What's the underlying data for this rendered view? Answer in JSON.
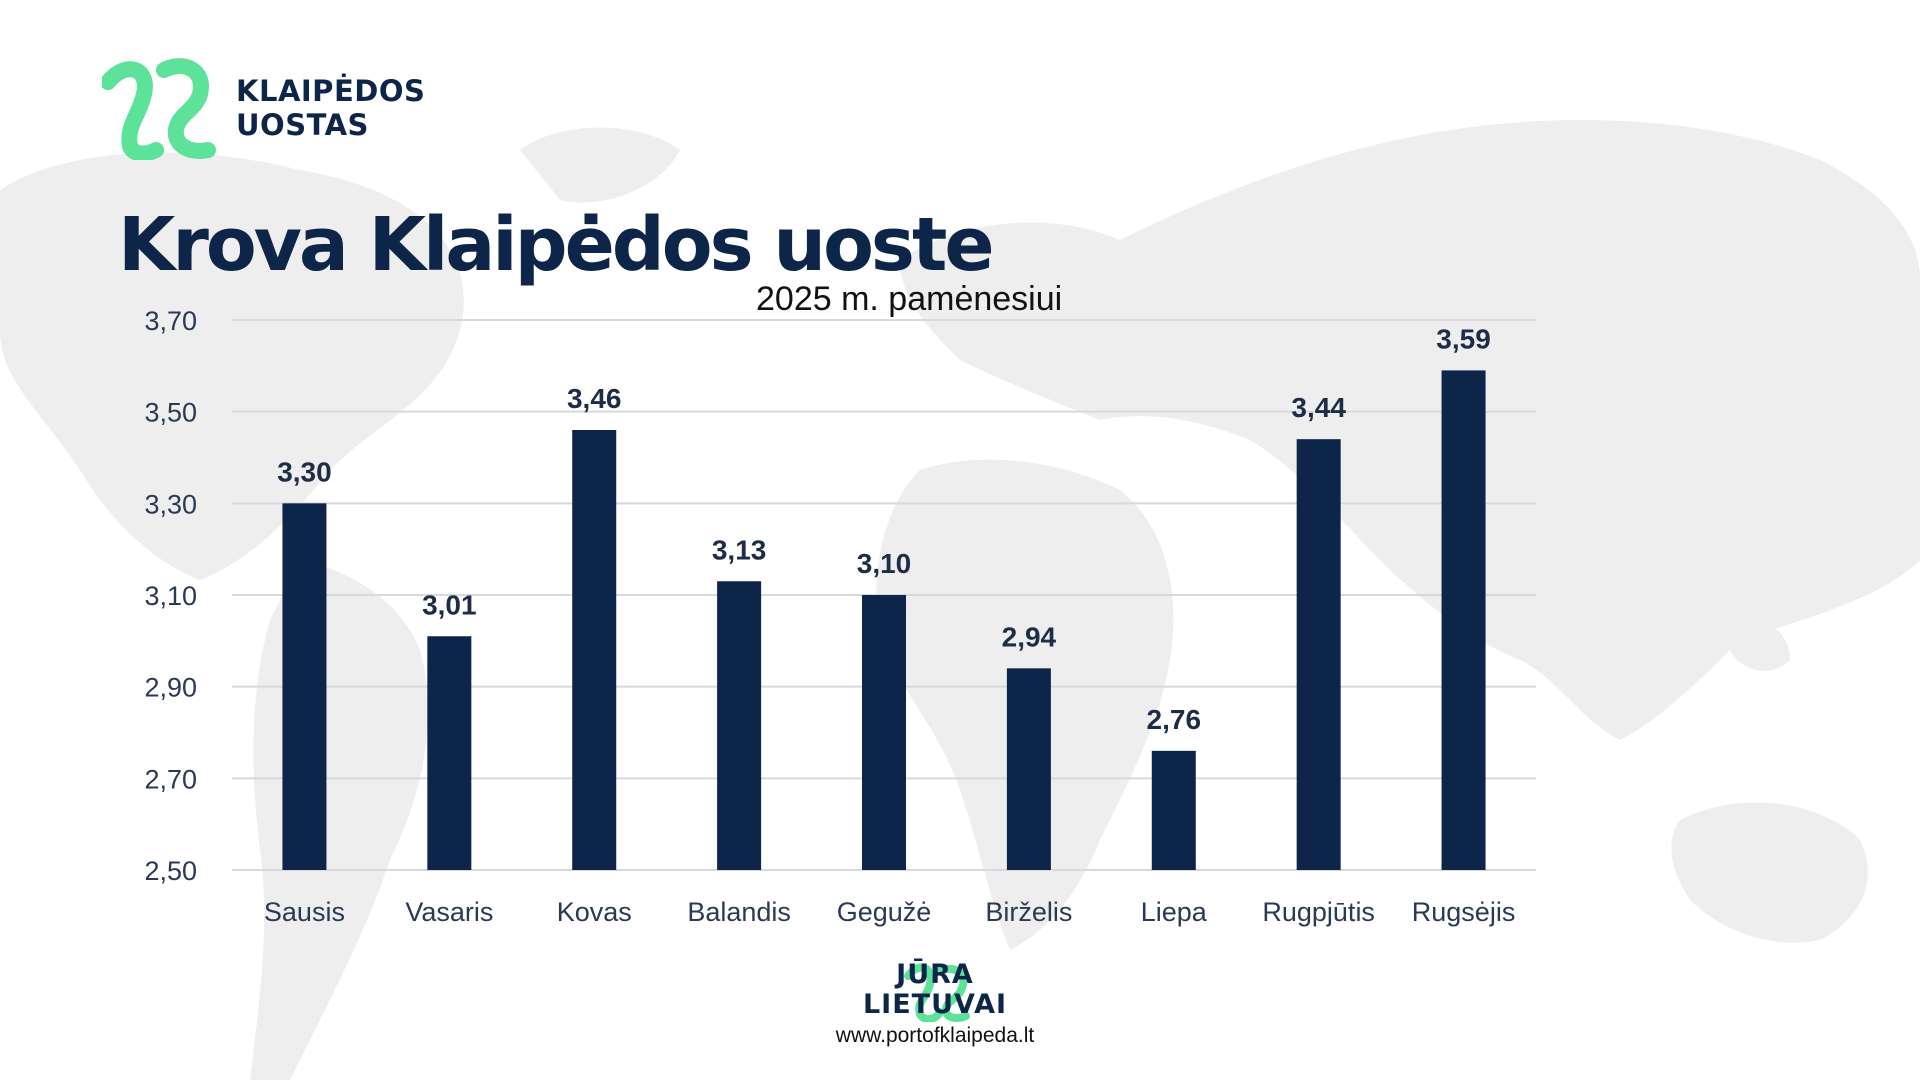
{
  "brand": {
    "line1": "KLAIPĖDOS",
    "line2": "UOSTAS",
    "logo_color": "#5de29a",
    "text_color": "#0d2548"
  },
  "footer": {
    "logo_line1": "JŪRA",
    "logo_line2": "LIETUVAI",
    "url": "www.portofklaipeda.lt"
  },
  "chart_data": {
    "type": "bar",
    "title": "Krova Klaipėdos uoste",
    "subtitle": "2025 m. pamėnesiui",
    "categories": [
      "Sausis",
      "Vasaris",
      "Kovas",
      "Balandis",
      "Gegužė",
      "Birželis",
      "Liepa",
      "Rugpjūtis",
      "Rugsėjis"
    ],
    "values": [
      3.3,
      3.01,
      3.46,
      3.13,
      3.1,
      2.94,
      2.76,
      3.44,
      3.59
    ],
    "value_labels": [
      "3,30",
      "3,01",
      "3,46",
      "3,13",
      "3,10",
      "2,94",
      "2,76",
      "3,44",
      "3,59"
    ],
    "y_ticks": [
      2.5,
      2.7,
      2.9,
      3.1,
      3.3,
      3.5,
      3.7
    ],
    "y_tick_labels": [
      "2,50",
      "2,70",
      "2,90",
      "3,10",
      "3,30",
      "3,50",
      "3,70"
    ],
    "ylim": [
      2.5,
      3.7
    ],
    "grid": true,
    "legend": "none",
    "bar_color": "#0d2548",
    "grid_color": "#d6d9de"
  }
}
